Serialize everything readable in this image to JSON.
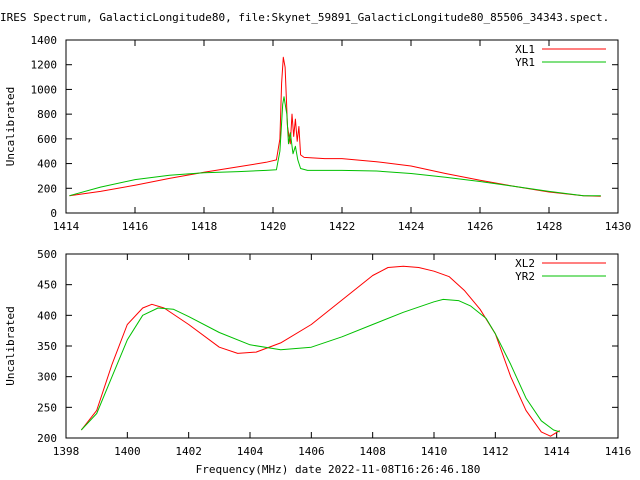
{
  "title": "IRES Spectrum, GalacticLongitude80, file:Skynet_59891_GalacticLongitude80_85506_34343.spect.",
  "xlabel": "Frequency(MHz) date 2022-11-08T16:26:46.180",
  "chart_data": [
    {
      "type": "line",
      "ylabel": "Uncalibrated",
      "xlim": [
        1414,
        1430
      ],
      "ylim": [
        0,
        1400
      ],
      "xticks": [
        1414,
        1416,
        1418,
        1420,
        1422,
        1424,
        1426,
        1428,
        1430
      ],
      "yticks": [
        0,
        200,
        400,
        600,
        800,
        1000,
        1200,
        1400
      ],
      "legend": "top-right",
      "series": [
        {
          "name": "XL1",
          "color": "#ff0000",
          "points": [
            [
              1414.1,
              140
            ],
            [
              1415,
              175
            ],
            [
              1416,
              225
            ],
            [
              1417,
              280
            ],
            [
              1418,
              330
            ],
            [
              1419,
              375
            ],
            [
              1419.8,
              410
            ],
            [
              1420.1,
              430
            ],
            [
              1420.2,
              600
            ],
            [
              1420.25,
              1050
            ],
            [
              1420.3,
              1260
            ],
            [
              1420.35,
              1180
            ],
            [
              1420.42,
              700
            ],
            [
              1420.5,
              560
            ],
            [
              1420.55,
              800
            ],
            [
              1420.6,
              620
            ],
            [
              1420.65,
              760
            ],
            [
              1420.7,
              580
            ],
            [
              1420.75,
              700
            ],
            [
              1420.8,
              470
            ],
            [
              1420.9,
              450
            ],
            [
              1421.5,
              440
            ],
            [
              1422,
              440
            ],
            [
              1423,
              415
            ],
            [
              1424,
              380
            ],
            [
              1425,
              320
            ],
            [
              1426,
              265
            ],
            [
              1427,
              215
            ],
            [
              1428,
              170
            ],
            [
              1429,
              140
            ],
            [
              1429.5,
              135
            ]
          ]
        },
        {
          "name": "YR1",
          "color": "#00c000",
          "points": [
            [
              1414.1,
              140
            ],
            [
              1415,
              210
            ],
            [
              1416,
              270
            ],
            [
              1417,
              305
            ],
            [
              1418,
              325
            ],
            [
              1419,
              335
            ],
            [
              1419.8,
              345
            ],
            [
              1420.1,
              350
            ],
            [
              1420.2,
              500
            ],
            [
              1420.28,
              880
            ],
            [
              1420.32,
              940
            ],
            [
              1420.4,
              800
            ],
            [
              1420.45,
              560
            ],
            [
              1420.5,
              650
            ],
            [
              1420.58,
              480
            ],
            [
              1420.65,
              540
            ],
            [
              1420.72,
              430
            ],
            [
              1420.8,
              360
            ],
            [
              1421,
              345
            ],
            [
              1422,
              345
            ],
            [
              1423,
              340
            ],
            [
              1424,
              320
            ],
            [
              1425,
              290
            ],
            [
              1426,
              255
            ],
            [
              1427,
              215
            ],
            [
              1428,
              175
            ],
            [
              1429,
              140
            ],
            [
              1429.5,
              140
            ]
          ]
        }
      ]
    },
    {
      "type": "line",
      "ylabel": "Uncalibrated",
      "xlim": [
        1398,
        1416
      ],
      "ylim": [
        200,
        500
      ],
      "xticks": [
        1398,
        1400,
        1402,
        1404,
        1406,
        1408,
        1410,
        1412,
        1414,
        1416
      ],
      "yticks": [
        200,
        250,
        300,
        350,
        400,
        450,
        500
      ],
      "legend": "top-right",
      "series": [
        {
          "name": "XL2",
          "color": "#ff0000",
          "points": [
            [
              1398.5,
              213
            ],
            [
              1399,
              245
            ],
            [
              1399.5,
              320
            ],
            [
              1400,
              385
            ],
            [
              1400.5,
              412
            ],
            [
              1400.8,
              418
            ],
            [
              1401.2,
              412
            ],
            [
              1402,
              385
            ],
            [
              1403,
              348
            ],
            [
              1403.6,
              338
            ],
            [
              1404.2,
              340
            ],
            [
              1405,
              355
            ],
            [
              1406,
              385
            ],
            [
              1407,
              425
            ],
            [
              1408,
              465
            ],
            [
              1408.5,
              478
            ],
            [
              1409,
              480
            ],
            [
              1409.5,
              478
            ],
            [
              1410,
              472
            ],
            [
              1410.5,
              463
            ],
            [
              1411,
              440
            ],
            [
              1411.5,
              410
            ],
            [
              1412,
              370
            ],
            [
              1412.5,
              300
            ],
            [
              1413,
              245
            ],
            [
              1413.5,
              210
            ],
            [
              1413.8,
              203
            ],
            [
              1414.1,
              212
            ]
          ]
        },
        {
          "name": "YR2",
          "color": "#00c000",
          "points": [
            [
              1398.5,
              213
            ],
            [
              1399,
              240
            ],
            [
              1399.5,
              300
            ],
            [
              1400,
              360
            ],
            [
              1400.5,
              400
            ],
            [
              1401,
              412
            ],
            [
              1401.5,
              410
            ],
            [
              1402,
              398
            ],
            [
              1403,
              372
            ],
            [
              1404,
              352
            ],
            [
              1405,
              344
            ],
            [
              1406,
              348
            ],
            [
              1407,
              365
            ],
            [
              1408,
              385
            ],
            [
              1409,
              405
            ],
            [
              1410,
              422
            ],
            [
              1410.3,
              426
            ],
            [
              1410.8,
              424
            ],
            [
              1411.2,
              415
            ],
            [
              1411.7,
              395
            ],
            [
              1412,
              370
            ],
            [
              1412.5,
              320
            ],
            [
              1413,
              265
            ],
            [
              1413.5,
              228
            ],
            [
              1413.9,
              213
            ],
            [
              1414.1,
              210
            ]
          ]
        }
      ]
    }
  ]
}
